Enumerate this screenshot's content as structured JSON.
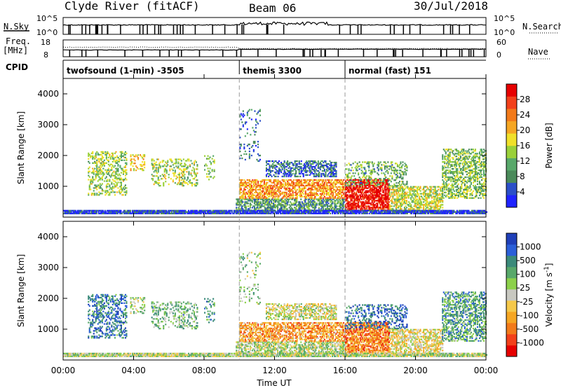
{
  "header": {
    "site": "Clyde River (fitACF)",
    "beam": "Beam 06",
    "date": "30/Jul/2018"
  },
  "top_panels": {
    "nsky_label": "N.Sky",
    "nsky_ticks": [
      "10^5",
      "10^0"
    ],
    "nsky_right_ticks": [
      "10^5",
      "10^0"
    ],
    "nsearch_label": "N.Search",
    "freq_label_1": "Freq.",
    "freq_label_2": "[MHz]",
    "freq_ticks": [
      "18",
      "8"
    ],
    "nave_ticks": [
      "60",
      "0"
    ],
    "nave_label": "Nave",
    "cpid_label": "CPID",
    "modes": [
      {
        "label": "twofsound (1-min) -3505",
        "start_hour": 0
      },
      {
        "label": "themis 3300",
        "start_hour": 10
      },
      {
        "label": "normal (fast) 151",
        "start_hour": 16
      }
    ]
  },
  "colorbars": {
    "power": {
      "label": "Power [dB]",
      "ticks": [
        "4",
        "8",
        "12",
        "16",
        "20",
        "24",
        "28"
      ],
      "colors": [
        "#1f23ff",
        "#2b4fc8",
        "#4a8a5a",
        "#58a86a",
        "#9ad03a",
        "#f0e02a",
        "#f5a623",
        "#f27a1a",
        "#f2401a",
        "#e60000"
      ]
    },
    "velocity": {
      "label": "Velocity [m s-1]",
      "label_main": "Velocity [m s",
      "label_sup": "-1",
      "label_end": "]",
      "ticks": [
        "1000",
        "500",
        "100",
        "25",
        "-25",
        "-100",
        "-500",
        "-1000"
      ],
      "colors": [
        "#1f3fb8",
        "#2b5fd8",
        "#3b8a7a",
        "#58a86a",
        "#8cd04a",
        "#c8c8c0",
        "#f5c84a",
        "#f5a623",
        "#f27a1a",
        "#f2401a",
        "#e60000"
      ]
    }
  },
  "chart_data": {
    "type": "heatmap",
    "panels": [
      {
        "name": "Power",
        "ylabel": "Slant Range [km]",
        "yticks": [
          1000,
          2000,
          3000,
          4000
        ],
        "ylim": [
          0,
          4500
        ]
      },
      {
        "name": "Velocity",
        "ylabel": "Slant Range [km]",
        "yticks": [
          1000,
          2000,
          3000,
          4000
        ],
        "ylim": [
          0,
          4500
        ]
      }
    ],
    "xlabel": "Time UT",
    "xticks": [
      "00:00",
      "04:00",
      "08:00",
      "12:00",
      "16:00",
      "20:00",
      "00:00"
    ],
    "xlim_hours": [
      0,
      24
    ],
    "mode_change_hours": [
      10,
      16
    ],
    "echo_regions": [
      {
        "t0": 1.4,
        "t1": 3.6,
        "r0": 700,
        "r1": 2100,
        "dens": 0.35,
        "pw": 0.45,
        "vel": 0.2
      },
      {
        "t0": 3.8,
        "t1": 4.6,
        "r0": 1500,
        "r1": 2000,
        "dens": 0.3,
        "pw": 0.6,
        "vel": 0.45
      },
      {
        "t0": 5.0,
        "t1": 7.6,
        "r0": 1000,
        "r1": 1900,
        "dens": 0.3,
        "pw": 0.45,
        "vel": 0.35
      },
      {
        "t0": 8.0,
        "t1": 8.6,
        "r0": 1200,
        "r1": 2000,
        "dens": 0.2,
        "pw": 0.4,
        "vel": 0.25
      },
      {
        "t0": 9.8,
        "t1": 16.0,
        "r0": 200,
        "r1": 600,
        "dens": 0.6,
        "pw": 0.3,
        "vel": 0.45
      },
      {
        "t0": 10.0,
        "t1": 16.0,
        "r0": 600,
        "r1": 1200,
        "dens": 0.6,
        "pw": 0.7,
        "vel": 0.7
      },
      {
        "t0": 11.5,
        "t1": 15.5,
        "r0": 1300,
        "r1": 1800,
        "dens": 0.5,
        "pw": 0.2,
        "vel": 0.5
      },
      {
        "t0": 10.0,
        "t1": 11.2,
        "r0": 1800,
        "r1": 3500,
        "dens": 0.12,
        "pw": 0.2,
        "vel": 0.4
      },
      {
        "t0": 16.0,
        "t1": 18.5,
        "r0": 200,
        "r1": 1200,
        "dens": 0.7,
        "pw": 0.95,
        "vel": 0.75
      },
      {
        "t0": 16.0,
        "t1": 19.5,
        "r0": 1000,
        "r1": 1800,
        "dens": 0.3,
        "pw": 0.35,
        "vel": 0.15
      },
      {
        "t0": 18.5,
        "t1": 21.5,
        "r0": 200,
        "r1": 1000,
        "dens": 0.55,
        "pw": 0.5,
        "vel": 0.55
      },
      {
        "t0": 21.5,
        "t1": 24.0,
        "r0": 600,
        "r1": 2200,
        "dens": 0.45,
        "pw": 0.4,
        "vel": 0.3
      },
      {
        "t0": 0.0,
        "t1": 24.0,
        "r0": 100,
        "r1": 230,
        "dens": 0.9,
        "pw": 0.1,
        "vel": 0.45
      }
    ]
  }
}
